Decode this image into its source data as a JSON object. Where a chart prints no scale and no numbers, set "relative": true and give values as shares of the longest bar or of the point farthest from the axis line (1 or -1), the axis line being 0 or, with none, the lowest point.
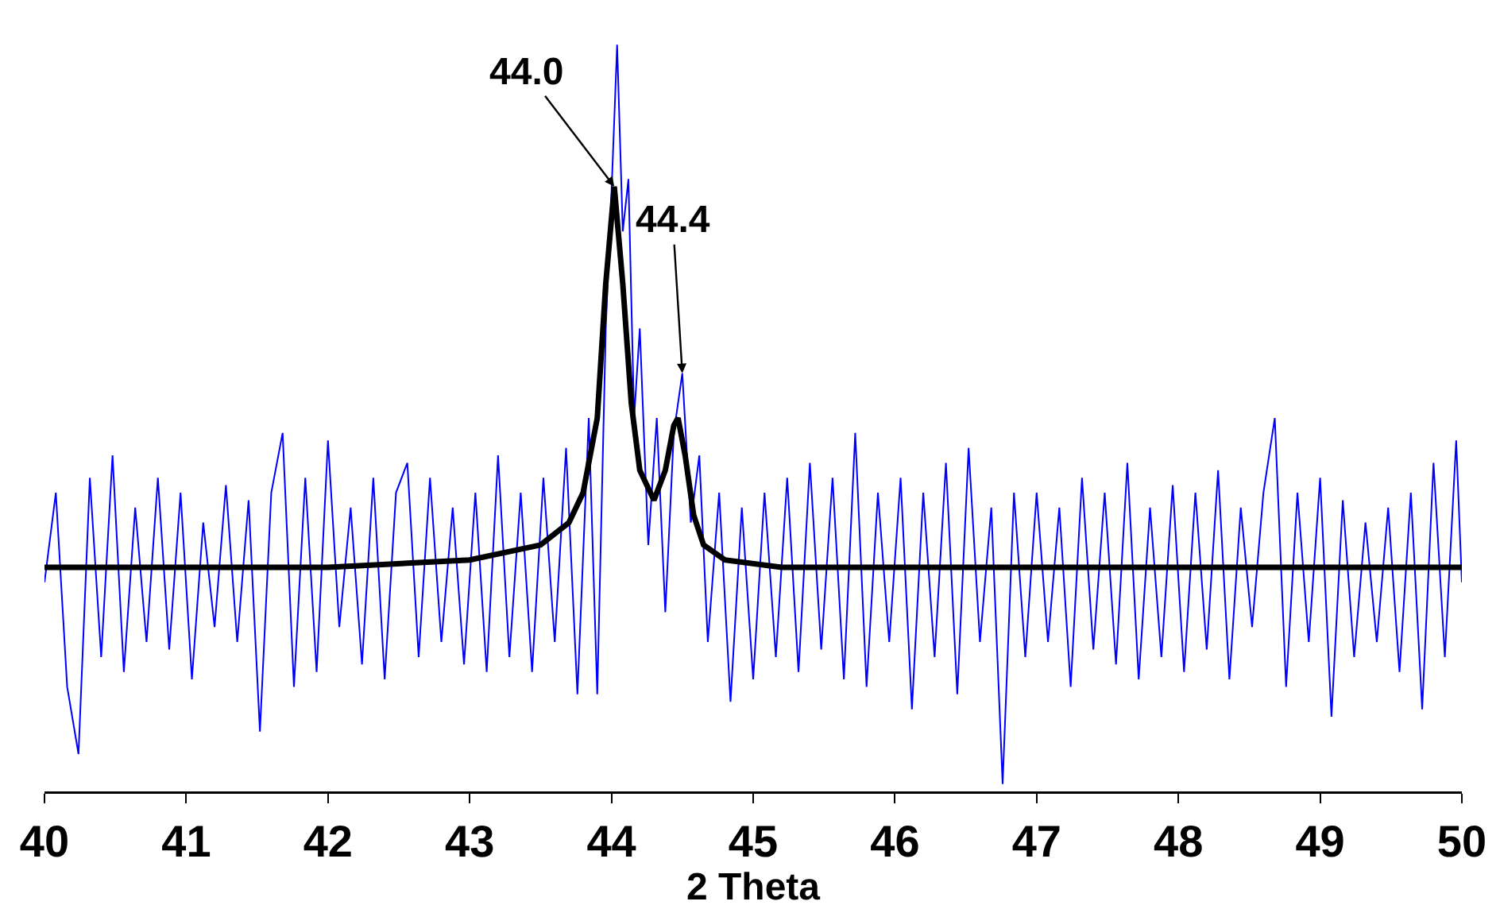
{
  "chart_data": {
    "type": "line",
    "relative": true,
    "xlabel": "2 Theta",
    "xlim": [
      40,
      50
    ],
    "xticks": [
      40,
      41,
      42,
      43,
      44,
      45,
      46,
      47,
      48,
      49,
      50
    ],
    "tick_labels": "x",
    "grid": false,
    "marker": "none",
    "line_style": "solid",
    "annotations": [
      {
        "text": "44.0",
        "x": 44.02,
        "y": 0.81
      },
      {
        "text": "44.4",
        "x": 44.5,
        "y": 0.56
      }
    ],
    "series": [
      {
        "color": "#0000ff",
        "x": [
          40.0,
          40.08,
          40.16,
          40.24,
          40.32,
          40.4,
          40.48,
          40.56,
          40.64,
          40.72,
          40.8,
          40.88,
          40.96,
          41.04,
          41.12,
          41.2,
          41.28,
          41.36,
          41.44,
          41.52,
          41.6,
          41.68,
          41.76,
          41.84,
          41.92,
          42.0,
          42.08,
          42.16,
          42.24,
          42.32,
          42.4,
          42.48,
          42.56,
          42.64,
          42.72,
          42.8,
          42.88,
          42.96,
          43.04,
          43.12,
          43.2,
          43.28,
          43.36,
          43.44,
          43.52,
          43.6,
          43.68,
          43.76,
          43.84,
          43.9,
          43.96,
          44.0,
          44.04,
          44.08,
          44.12,
          44.16,
          44.2,
          44.26,
          44.32,
          44.38,
          44.44,
          44.5,
          44.56,
          44.62,
          44.68,
          44.76,
          44.84,
          44.92,
          45.0,
          45.08,
          45.16,
          45.24,
          45.32,
          45.4,
          45.48,
          45.56,
          45.64,
          45.72,
          45.8,
          45.88,
          45.96,
          46.04,
          46.12,
          46.2,
          46.28,
          46.36,
          46.44,
          46.52,
          46.6,
          46.68,
          46.76,
          46.84,
          46.92,
          47.0,
          47.08,
          47.16,
          47.24,
          47.32,
          47.4,
          47.48,
          47.56,
          47.64,
          47.72,
          47.8,
          47.88,
          47.96,
          48.04,
          48.12,
          48.2,
          48.28,
          48.36,
          48.44,
          48.52,
          48.6,
          48.68,
          48.76,
          48.84,
          48.92,
          49.0,
          49.08,
          49.16,
          49.24,
          49.32,
          49.4,
          49.48,
          49.56,
          49.64,
          49.72,
          49.8,
          49.88,
          49.96,
          50.0
        ],
        "values": [
          0.28,
          0.4,
          0.14,
          0.05,
          0.42,
          0.18,
          0.45,
          0.16,
          0.38,
          0.2,
          0.42,
          0.19,
          0.4,
          0.15,
          0.36,
          0.22,
          0.41,
          0.2,
          0.39,
          0.08,
          0.4,
          0.48,
          0.14,
          0.42,
          0.16,
          0.47,
          0.22,
          0.38,
          0.17,
          0.42,
          0.15,
          0.4,
          0.44,
          0.18,
          0.42,
          0.2,
          0.38,
          0.17,
          0.4,
          0.16,
          0.45,
          0.18,
          0.4,
          0.16,
          0.42,
          0.2,
          0.46,
          0.13,
          0.5,
          0.13,
          0.62,
          0.8,
          1.0,
          0.75,
          0.82,
          0.5,
          0.62,
          0.33,
          0.5,
          0.24,
          0.48,
          0.56,
          0.36,
          0.45,
          0.2,
          0.4,
          0.12,
          0.38,
          0.15,
          0.4,
          0.18,
          0.42,
          0.16,
          0.44,
          0.19,
          0.42,
          0.15,
          0.48,
          0.14,
          0.4,
          0.2,
          0.42,
          0.11,
          0.4,
          0.18,
          0.44,
          0.13,
          0.46,
          0.2,
          0.38,
          0.01,
          0.4,
          0.18,
          0.4,
          0.2,
          0.38,
          0.14,
          0.42,
          0.19,
          0.4,
          0.17,
          0.44,
          0.15,
          0.38,
          0.18,
          0.41,
          0.16,
          0.4,
          0.19,
          0.43,
          0.15,
          0.38,
          0.22,
          0.4,
          0.5,
          0.14,
          0.4,
          0.2,
          0.42,
          0.1,
          0.39,
          0.18,
          0.36,
          0.2,
          0.38,
          0.16,
          0.4,
          0.11,
          0.44,
          0.18,
          0.47,
          0.28
        ]
      },
      {
        "color": "#000000",
        "x": [
          40,
          42,
          43,
          43.5,
          43.7,
          43.8,
          43.9,
          43.96,
          44.02,
          44.08,
          44.14,
          44.2,
          44.3,
          44.38,
          44.44,
          44.47,
          44.52,
          44.58,
          44.65,
          44.8,
          45.2,
          50
        ],
        "values": [
          0.3,
          0.3,
          0.31,
          0.33,
          0.36,
          0.4,
          0.5,
          0.68,
          0.81,
          0.68,
          0.52,
          0.43,
          0.39,
          0.43,
          0.49,
          0.5,
          0.45,
          0.37,
          0.33,
          0.31,
          0.3,
          0.3
        ]
      }
    ]
  }
}
